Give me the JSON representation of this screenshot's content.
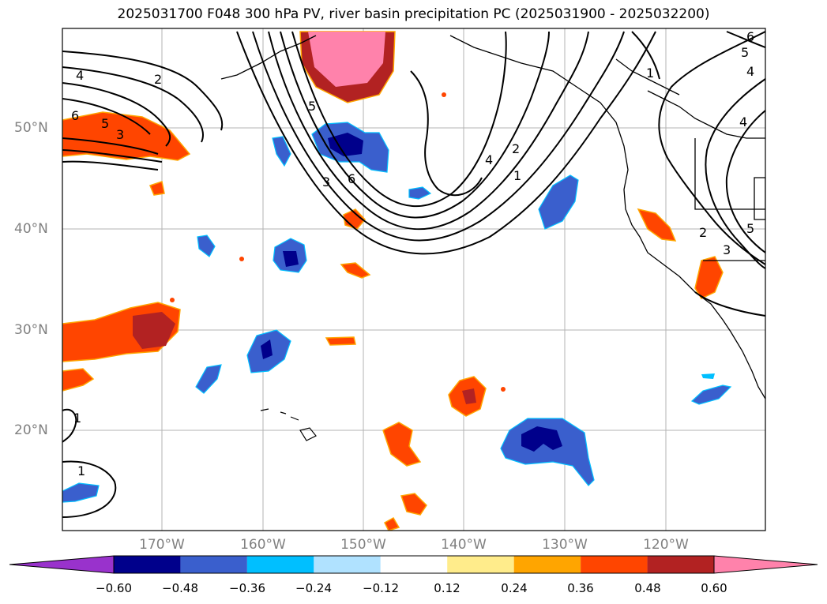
{
  "title": "2025031700 F048 300 hPa PV, river basin precipitation PC (2025031900 - 2025032200)",
  "lat_labels": [
    "50°N",
    "40°N",
    "30°N",
    "20°N"
  ],
  "lon_labels": [
    "170°W",
    "160°W",
    "150°W",
    "140°W",
    "130°W",
    "120°W"
  ],
  "colorbar": {
    "ticks": [
      "−0.60",
      "−0.48",
      "−0.36",
      "−0.24",
      "−0.12",
      "0.12",
      "0.24",
      "0.36",
      "0.48",
      "0.60"
    ],
    "colors": [
      "#9932cc",
      "#00008b",
      "#3a5fcd",
      "#00bfff",
      "#b0e2ff",
      "#ffffff",
      "#ffec8b",
      "#ffa500",
      "#ff4500",
      "#b22222",
      "#ff82ab"
    ]
  },
  "contour_labels": [
    "4",
    "2",
    "6",
    "5",
    "3",
    "5",
    "3",
    "6",
    "4",
    "2",
    "1",
    "1",
    "6",
    "5",
    "4",
    "4",
    "2",
    "3",
    "5",
    "1",
    "1"
  ]
}
